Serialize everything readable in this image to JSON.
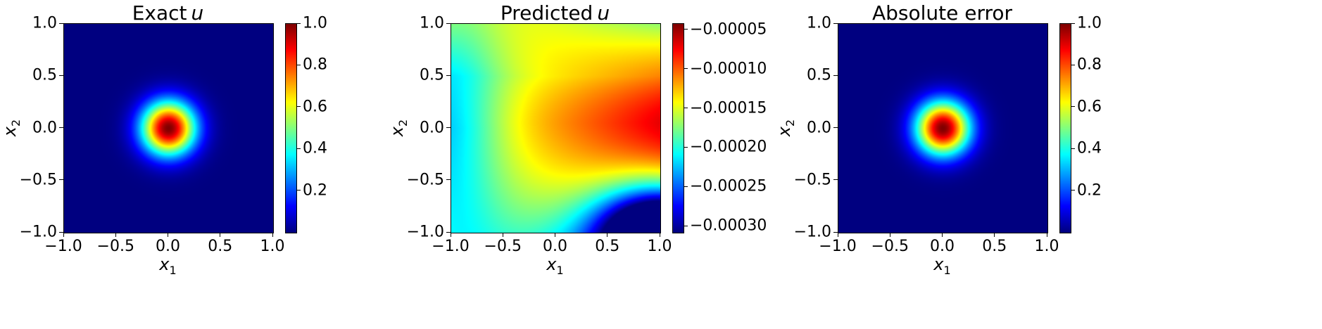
{
  "chart_data": [
    {
      "type": "heatmap",
      "title": "Exact",
      "title_var": "u",
      "xlabel": "x",
      "xlabel_sub": "1",
      "ylabel": "x",
      "ylabel_sub": "2",
      "xlim": [
        -1.0,
        1.0
      ],
      "ylim": [
        -1.0,
        1.0
      ],
      "xticks": [
        "−1.0",
        "−0.5",
        "0.0",
        "0.5",
        "1.0"
      ],
      "yticks": [
        "−1.0",
        "−0.5",
        "0.0",
        "0.5",
        "1.0"
      ],
      "colormap": "jet",
      "field": "gaussian bump centered at (0, 0), peak 1.0",
      "center": [
        0.0,
        0.0
      ],
      "peak": 1.0,
      "width": 0.18,
      "colorbar": {
        "min": 0.0,
        "max": 1.0,
        "ticks": [
          0.2,
          0.4,
          0.6,
          0.8,
          1.0
        ],
        "tick_labels": [
          "0.2",
          "0.4",
          "0.6",
          "0.8",
          "1.0"
        ]
      }
    },
    {
      "type": "heatmap",
      "title": "Predicted",
      "title_var": "u",
      "xlabel": "x",
      "xlabel_sub": "1",
      "ylabel": "x",
      "ylabel_sub": "2",
      "xlim": [
        -1.0,
        1.0
      ],
      "ylim": [
        -1.0,
        1.0
      ],
      "xticks": [
        "−1.0",
        "−0.5",
        "0.0",
        "0.5",
        "1.0"
      ],
      "yticks": [
        "−1.0",
        "−0.5",
        "0.0",
        "0.5",
        "1.0"
      ],
      "colormap": "jet",
      "field": "max near (1.0, 0.0); minimum near bottom-right corner (1.0, -1.0); lower values along left edge",
      "max_location": [
        1.0,
        0.05
      ],
      "min_location": [
        1.0,
        -1.0
      ],
      "colorbar": {
        "min": -0.000308,
        "max": -4.2e-05,
        "ticks": [
          -5e-05,
          -0.0001,
          -0.00015,
          -0.0002,
          -0.00025,
          -0.0003
        ],
        "tick_labels": [
          "−0.00005",
          "−0.00010",
          "−0.00015",
          "−0.00020",
          "−0.00025",
          "−0.00030"
        ]
      }
    },
    {
      "type": "heatmap",
      "title": "Absolute error",
      "title_var": "",
      "xlabel": "x",
      "xlabel_sub": "1",
      "ylabel": "x",
      "ylabel_sub": "2",
      "xlim": [
        -1.0,
        1.0
      ],
      "ylim": [
        -1.0,
        1.0
      ],
      "xticks": [
        "−1.0",
        "−0.5",
        "0.0",
        "0.5",
        "1.0"
      ],
      "yticks": [
        "−1.0",
        "−0.5",
        "0.0",
        "0.5",
        "1.0"
      ],
      "colormap": "jet",
      "field": "gaussian bump centered at (0, 0), peak 1.0",
      "center": [
        0.0,
        0.0
      ],
      "peak": 1.0,
      "width": 0.18,
      "colorbar": {
        "min": 0.0,
        "max": 1.0,
        "ticks": [
          0.2,
          0.4,
          0.6,
          0.8,
          1.0
        ],
        "tick_labels": [
          "0.2",
          "0.4",
          "0.6",
          "0.8",
          "1.0"
        ]
      }
    }
  ]
}
